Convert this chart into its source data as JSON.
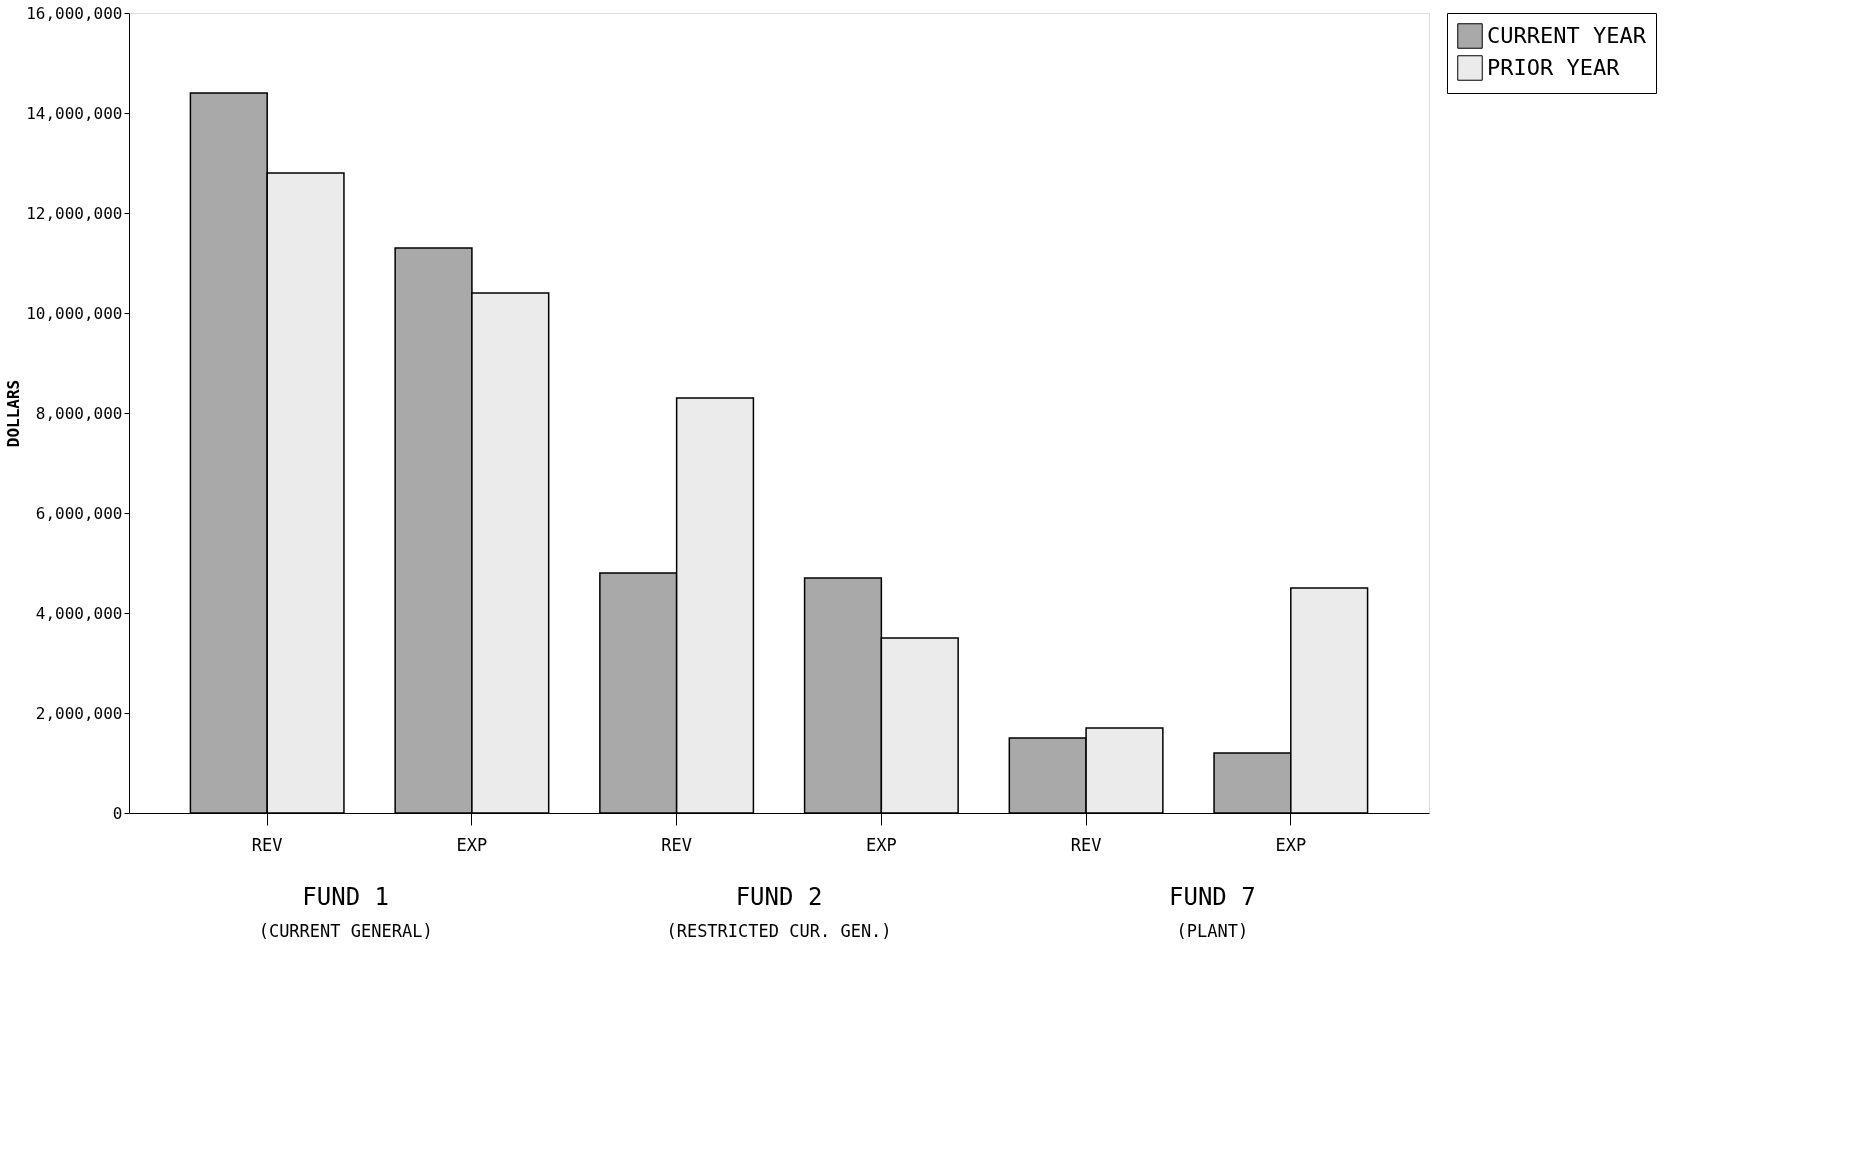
{
  "chart_data": {
    "type": "bar",
    "ylabel": "DOLLARS",
    "categories": [
      "REV",
      "EXP",
      "REV",
      "EXP",
      "REV",
      "EXP"
    ],
    "series": [
      {
        "name": "CURRENT YEAR",
        "color": "#a9a9a9",
        "values": [
          14400000,
          11300000,
          4800000,
          4700000,
          1500000,
          1200000
        ]
      },
      {
        "name": "PRIOR YEAR",
        "color": "#ebebeb",
        "values": [
          12800000,
          10400000,
          8300000,
          3500000,
          1700000,
          4500000
        ]
      }
    ],
    "ylim": [
      0,
      16000000
    ],
    "yticks": [
      {
        "value": 0,
        "label": "0"
      },
      {
        "value": 2000000,
        "label": "2,000,000"
      },
      {
        "value": 4000000,
        "label": "4,000,000"
      },
      {
        "value": 6000000,
        "label": "6,000,000"
      },
      {
        "value": 8000000,
        "label": "8,000,000"
      },
      {
        "value": 10000000,
        "label": "10,000,000"
      },
      {
        "value": 12000000,
        "label": "12,000,000"
      },
      {
        "value": 14000000,
        "label": "14,000,000"
      },
      {
        "value": 16000000,
        "label": "16,000,000"
      }
    ],
    "annotations": [
      "FUND 1",
      "(CURRENT GENERAL)",
      "FUND 2",
      "(RESTRICTED CUR. GEN.)",
      "FUND 7",
      "(PLANT)"
    ],
    "legend": "right",
    "grid": false
  }
}
